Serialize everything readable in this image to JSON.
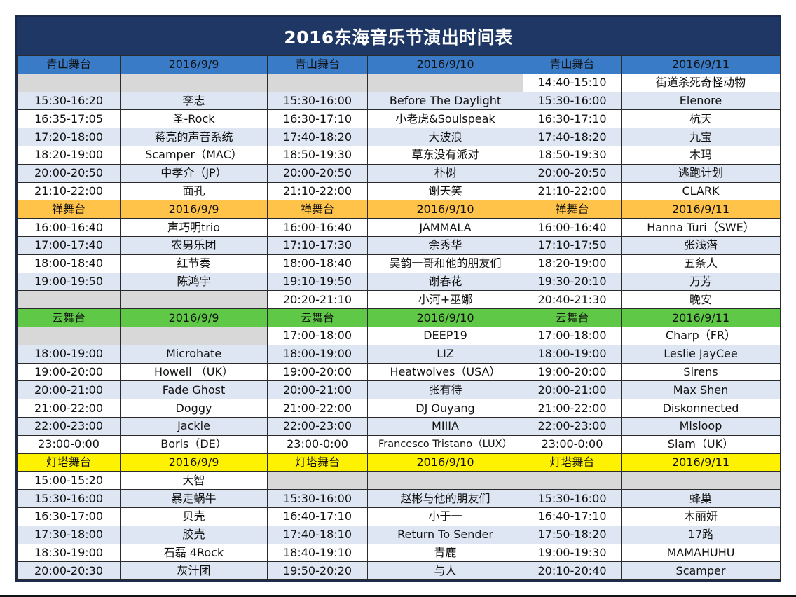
{
  "title": "2016东海音乐节演出时间表",
  "colors": {
    "title_bg": "#1e3764",
    "blue_header": "#3a7bc8",
    "orange_header": "#ffc34a",
    "green_header": "#5fc846",
    "yellow_header": "#fff200",
    "row_alt": "#dde6f2",
    "row_empty": "#d8d8d8"
  },
  "sections": [
    {
      "color": "blue",
      "header": [
        "青山舞台",
        "2016/9/9",
        "青山舞台",
        "2016/9/10",
        "青山舞台",
        "2016/9/11"
      ],
      "rows": [
        [
          "",
          "",
          "",
          "",
          "14:40-15:10",
          "街道杀死奇怪动物"
        ],
        [
          "15:30-16:20",
          "李志",
          "15:30-16:00",
          "Before The Daylight",
          "15:30-16:00",
          "Elenore"
        ],
        [
          "16:35-17:05",
          "圣-Rock",
          "16:30-17:10",
          "小老虎&Soulspeak",
          "16:30-17:10",
          "杭天"
        ],
        [
          "17:20-18:00",
          "蒋亮的声音系统",
          "17:40-18:20",
          "大波浪",
          "17:40-18:20",
          "九宝"
        ],
        [
          "18:20-19:00",
          "Scamper（MAC）",
          "18:50-19:30",
          "草东没有派对",
          "18:50-19:30",
          "木玛"
        ],
        [
          "20:00-20:50",
          "中孝介（JP）",
          "20:00-20:50",
          "朴树",
          "20:00-20:50",
          "逃跑计划"
        ],
        [
          "21:10-22:00",
          "面孔",
          "21:10-22:00",
          "谢天笑",
          "21:10-22:00",
          "CLARK"
        ]
      ]
    },
    {
      "color": "orange",
      "header": [
        "禅舞台",
        "2016/9/9",
        "禅舞台",
        "2016/9/10",
        "禅舞台",
        "2016/9/11"
      ],
      "rows": [
        [
          "16:00-16:40",
          "声巧明trio",
          "16:00-16:40",
          "JAMMALA",
          "16:00-16:40",
          "Hanna Turi（SWE）"
        ],
        [
          "17:00-17:40",
          "农男乐团",
          "17:10-17:30",
          "余秀华",
          "17:10-17:50",
          "张浅潜"
        ],
        [
          "18:00-18:40",
          "红节奏",
          "18:00-18:40",
          "吴韵一哥和他的朋友们",
          "18:20-19:00",
          "五条人"
        ],
        [
          "19:00-19:50",
          "陈鸿宇",
          "19:10-19:50",
          "谢春花",
          "19:30-20:10",
          "万芳"
        ],
        [
          "",
          "",
          "20:20-21:10",
          "小河+巫娜",
          "20:40-21:30",
          "晚安"
        ]
      ]
    },
    {
      "color": "green",
      "header": [
        "云舞台",
        "2016/9/9",
        "云舞台",
        "2016/9/10",
        "云舞台",
        "2016/9/11"
      ],
      "rows": [
        [
          "",
          "",
          "17:00-18:00",
          "DEEP19",
          "17:00-18:00",
          "Charp（FR）"
        ],
        [
          "18:00-19:00",
          "Microhate",
          "18:00-19:00",
          "LIZ",
          "18:00-19:00",
          "Leslie JayCee"
        ],
        [
          "19:00-20:00",
          "Howell （UK）",
          "19:00-20:00",
          "Heatwolves（USA）",
          "19:00-20:00",
          "Sirens"
        ],
        [
          "20:00-21:00",
          "Fade Ghost",
          "20:00-21:00",
          "张有待",
          "20:00-21:00",
          "Max Shen"
        ],
        [
          "21:00-22:00",
          "Doggy",
          "21:00-22:00",
          "DJ Ouyang",
          "21:00-22:00",
          "Diskonnected"
        ],
        [
          "22:00-23:00",
          "Jackie",
          "22:00-23:00",
          "MIIIA",
          "22:00-23:00",
          "Misloop"
        ],
        [
          "23:00-0:00",
          "Boris（DE）",
          "23:00-0:00",
          "Francesco Tristano（LUX）",
          "23:00-0:00",
          "Slam（UK）"
        ]
      ]
    },
    {
      "color": "yellow",
      "header": [
        "灯塔舞台",
        "2016/9/9",
        "灯塔舞台",
        "2016/9/10",
        "灯塔舞台",
        "2016/9/11"
      ],
      "rows": [
        [
          "15:00-15:20",
          "大智",
          "",
          "",
          "",
          ""
        ],
        [
          "15:30-16:00",
          "暴走蜗牛",
          "15:30-16:00",
          "赵彬与他的朋友们",
          "15:30-16:00",
          "蜂巢"
        ],
        [
          "16:30-17:00",
          "贝壳",
          "16:40-17:10",
          "小于一",
          "16:40-17:10",
          "木丽妍"
        ],
        [
          "17:30-18:00",
          "胶壳",
          "17:40-18:10",
          "Return To Sender",
          "17:50-18:20",
          "17路"
        ],
        [
          "18:30-19:00",
          "石磊 4Rock",
          "18:40-19:10",
          "青鹿",
          "19:00-19:30",
          "MAMAHUHU"
        ],
        [
          "20:00-20:30",
          "灰汁团",
          "19:50-20:20",
          "与人",
          "20:10-20:40",
          "Scamper"
        ]
      ]
    }
  ]
}
